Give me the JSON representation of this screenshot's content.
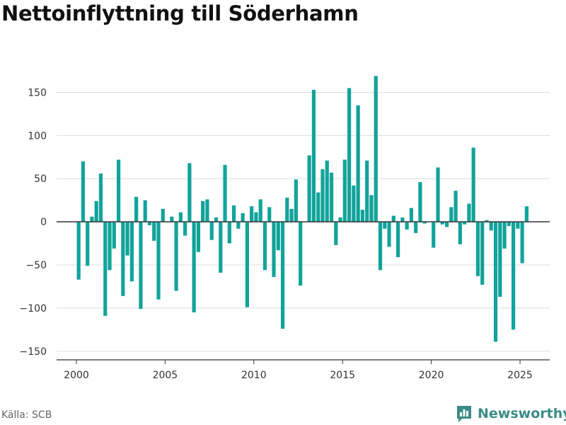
{
  "title": "Nettoinflyttning till Söderhamn",
  "source": "Källa: SCB",
  "brand": {
    "name": "Newsworthy",
    "icon": "newsworthy-logo-icon",
    "color": "#3c8c85"
  },
  "chart_data": {
    "type": "bar",
    "title": "Nettoinflyttning till Söderhamn",
    "xlabel": "",
    "ylabel": "",
    "color": "#12a39a",
    "grid": true,
    "legend": "none",
    "ylim": [
      -160,
      175
    ],
    "xlim": [
      2000,
      2026
    ],
    "yticks": [
      150,
      100,
      50,
      0,
      -50,
      -100,
      -150
    ],
    "ytick_labels": [
      "150",
      "100",
      "50",
      "0",
      "−50",
      "−100",
      "−150"
    ],
    "xticks": [
      2000,
      2005,
      2010,
      2015,
      2020,
      2025
    ],
    "xtick_labels": [
      "2000",
      "2005",
      "2010",
      "2015",
      "2020",
      "2025"
    ],
    "x_start": "2000-Q1",
    "interval": "quarter",
    "values": [
      -67,
      70,
      -51,
      6,
      24,
      56,
      -109,
      -56,
      -31,
      72,
      -86,
      -39,
      -69,
      29,
      -101,
      25,
      -4,
      -22,
      -90,
      15,
      0,
      6,
      -80,
      11,
      -16,
      68,
      -105,
      -35,
      24,
      26,
      -21,
      5,
      -59,
      66,
      -25,
      19,
      -8,
      10,
      -99,
      18,
      11,
      26,
      -56,
      17,
      -64,
      -33,
      -124,
      28,
      15,
      49,
      -74,
      0,
      77,
      153,
      34,
      61,
      71,
      57,
      -27,
      5,
      72,
      155,
      42,
      135,
      14,
      71,
      31,
      169,
      -56,
      -8,
      -29,
      7,
      -41,
      5,
      -9,
      16,
      -13,
      46,
      -2,
      0,
      -30,
      63,
      -3,
      -6,
      17,
      36,
      -26,
      -3,
      21,
      86,
      -63,
      -73,
      2,
      -10,
      -139,
      -87,
      -31,
      -5,
      -125,
      -8,
      -48,
      18
    ]
  }
}
